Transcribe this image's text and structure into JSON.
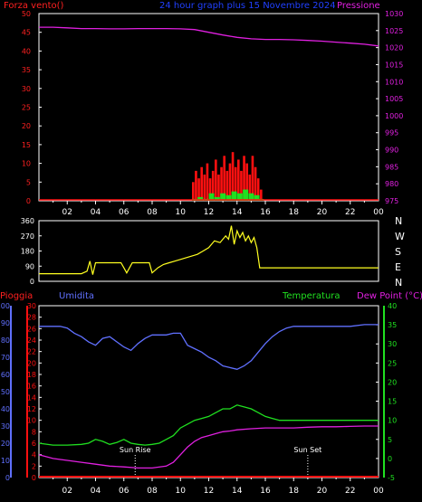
{
  "header": {
    "left_label": "Forza vento()",
    "title": "24 hour graph plus 15 Novembre 2024",
    "right_label": "Pressione"
  },
  "colors": {
    "background": "#000000",
    "frame": "#ffffff",
    "wind_axis": "#ff2020",
    "pressure": "#e020e0",
    "gust": "#ff1010",
    "wind_avg": "#20e020",
    "direction": "#ffff20",
    "humidity": "#6070ff",
    "temperature": "#20e020",
    "dew_point": "#e020e0",
    "rain": "#ff1010"
  },
  "hour_ticks": [
    "02",
    "04",
    "06",
    "08",
    "10",
    "12",
    "14",
    "16",
    "18",
    "20",
    "22",
    "00"
  ],
  "direction_letters": [
    "N",
    "W",
    "S",
    "E",
    "N"
  ],
  "bottom_labels": {
    "rain": "Pioggia",
    "humidity": "Umidita",
    "temperature": "Temperatura",
    "dew_point": "Dew Point (°C)",
    "sun_rise": "Sun Rise",
    "sun_set": "Sun Set"
  },
  "chart_data": [
    {
      "type": "line",
      "name_panel": "wind-pressure",
      "x_range_hours": [
        0,
        24
      ],
      "left_axis": {
        "ticks": [
          0,
          5,
          10,
          15,
          20,
          25,
          30,
          35,
          40,
          45,
          50
        ],
        "range": [
          0,
          50
        ]
      },
      "right_axis": {
        "ticks": [
          975,
          980,
          985,
          990,
          995,
          1000,
          1005,
          1010,
          1015,
          1020,
          1025,
          1030
        ],
        "range": [
          975,
          1030
        ]
      },
      "series": [
        {
          "key": "pressure",
          "axis": "right",
          "x": [
            0,
            1,
            2,
            3,
            4,
            5,
            6,
            7,
            8,
            9,
            10,
            11,
            12,
            13,
            14,
            15,
            16,
            17,
            18,
            19,
            20,
            21,
            22,
            23,
            24
          ],
          "values": [
            1026,
            1026,
            1025.8,
            1025.6,
            1025.6,
            1025.5,
            1025.5,
            1025.6,
            1025.6,
            1025.6,
            1025.5,
            1025.3,
            1024.5,
            1023.7,
            1023,
            1022.6,
            1022.4,
            1022.4,
            1022.3,
            1022.1,
            1021.9,
            1021.6,
            1021.3,
            1021,
            1020.5
          ]
        },
        {
          "key": "gust",
          "axis": "left",
          "x": [
            10.9,
            11.1,
            11.3,
            11.5,
            11.7,
            11.9,
            12.1,
            12.3,
            12.5,
            12.7,
            12.9,
            13.1,
            13.3,
            13.5,
            13.7,
            13.9,
            14.1,
            14.3,
            14.5,
            14.7,
            14.9,
            15.1,
            15.3,
            15.5,
            15.7
          ],
          "values": [
            5,
            8,
            6,
            9,
            7,
            10,
            6,
            8,
            11,
            7,
            9,
            12,
            8,
            10,
            13,
            9,
            11,
            8,
            12,
            10,
            7,
            12,
            9,
            6,
            3
          ]
        },
        {
          "key": "wind_avg",
          "axis": "left",
          "x": [
            11.0,
            11.4,
            11.8,
            12.2,
            12.6,
            13.0,
            13.4,
            13.8,
            14.2,
            14.6,
            15.0,
            15.4,
            15.7
          ],
          "values": [
            0.5,
            1,
            0.5,
            2,
            1,
            2,
            1.5,
            2.5,
            2,
            3,
            2,
            1.5,
            0.5
          ]
        }
      ]
    },
    {
      "type": "line",
      "name_panel": "wind-direction",
      "x_range_hours": [
        0,
        24
      ],
      "left_axis": {
        "ticks": [
          0,
          90,
          180,
          270,
          360
        ],
        "range": [
          0,
          360
        ]
      },
      "series": [
        {
          "key": "direction",
          "x": [
            0,
            1,
            2,
            3,
            3.4,
            3.6,
            3.8,
            4.0,
            4.2,
            4.6,
            5,
            5.4,
            5.8,
            6.0,
            6.2,
            6.6,
            7,
            7.4,
            7.8,
            8,
            8.4,
            8.8,
            9.2,
            9.6,
            10,
            10.4,
            10.8,
            11.2,
            11.6,
            12,
            12.4,
            12.8,
            13.2,
            13.4,
            13.6,
            13.8,
            14.0,
            14.2,
            14.4,
            14.6,
            14.8,
            15.0,
            15.2,
            15.4,
            15.6,
            16,
            17,
            18,
            19,
            20,
            21,
            22,
            23,
            24
          ],
          "values": [
            45,
            45,
            45,
            45,
            60,
            120,
            40,
            110,
            110,
            110,
            110,
            110,
            110,
            80,
            50,
            110,
            110,
            110,
            110,
            50,
            80,
            100,
            110,
            120,
            130,
            140,
            150,
            160,
            180,
            200,
            240,
            230,
            270,
            250,
            330,
            220,
            300,
            260,
            290,
            240,
            270,
            230,
            260,
            200,
            80,
            80,
            80,
            80,
            80,
            80,
            80,
            80,
            80,
            80
          ]
        }
      ]
    },
    {
      "type": "line",
      "name_panel": "humidity-temperature",
      "x_range_hours": [
        0,
        24
      ],
      "rain_axis": {
        "ticks": [
          0,
          2,
          4,
          6,
          8,
          10,
          12,
          14,
          16,
          18,
          20,
          22,
          24,
          26,
          28,
          30
        ],
        "range": [
          0,
          30
        ]
      },
      "humidity_axis": {
        "ticks": [
          0,
          10,
          20,
          30,
          40,
          50,
          60,
          70,
          80,
          90,
          100
        ],
        "range": [
          0,
          100
        ]
      },
      "temperature_axis": {
        "ticks": [
          -5,
          0,
          5,
          10,
          15,
          20,
          25,
          30,
          35,
          40
        ],
        "range": [
          -5,
          40
        ]
      },
      "markers": {
        "sun_rise_hour": 6.8,
        "sun_set_hour": 19.0
      },
      "series": [
        {
          "key": "humidity",
          "axis": "humidity",
          "x": [
            0,
            0.5,
            1,
            1.5,
            2,
            2.5,
            3,
            3.5,
            4,
            4.5,
            5,
            5.5,
            6,
            6.5,
            7,
            7.5,
            8,
            8.5,
            9,
            9.5,
            10,
            10.5,
            11,
            11.5,
            12,
            12.5,
            13,
            13.5,
            14,
            14.5,
            15,
            15.5,
            16,
            16.5,
            17,
            17.5,
            18,
            18.5,
            19,
            19.5,
            20,
            21,
            22,
            23,
            24
          ],
          "values": [
            88,
            88,
            88,
            88,
            87,
            84,
            82,
            79,
            77,
            81,
            82,
            79,
            76,
            74,
            78,
            81,
            83,
            83,
            83,
            84,
            84,
            77,
            75,
            73,
            70,
            68,
            65,
            64,
            63,
            65,
            68,
            73,
            78,
            82,
            85,
            87,
            88,
            88,
            88,
            88,
            88,
            88,
            88,
            89,
            89
          ]
        },
        {
          "key": "temperature",
          "axis": "temperature",
          "x": [
            0,
            1,
            2,
            3,
            3.5,
            4,
            4.5,
            5,
            5.5,
            6,
            6.5,
            7,
            7.5,
            8,
            8.5,
            9,
            9.5,
            10,
            10.5,
            11,
            11.5,
            12,
            12.5,
            13,
            13.5,
            14,
            14.5,
            15,
            15.5,
            16,
            16.5,
            17,
            18,
            19,
            20,
            21,
            22,
            23,
            24
          ],
          "values": [
            4,
            3.5,
            3.5,
            3.7,
            4,
            5,
            4.5,
            3.7,
            4.2,
            5,
            4,
            3.7,
            3.5,
            3.7,
            4,
            5,
            6,
            8,
            9,
            10,
            10.5,
            11,
            12,
            13,
            13,
            14,
            13.5,
            13,
            12,
            11,
            10.5,
            10,
            10,
            10,
            10,
            10,
            10,
            10,
            10
          ]
        },
        {
          "key": "dew_point",
          "axis": "temperature",
          "x": [
            0,
            1,
            2,
            3,
            4,
            5,
            6,
            7,
            8,
            9,
            9.5,
            10,
            10.5,
            11,
            11.5,
            12,
            12.5,
            13,
            13.5,
            14,
            15,
            16,
            17,
            18,
            19,
            20,
            21,
            22,
            23,
            24
          ],
          "values": [
            1,
            0,
            -0.5,
            -1,
            -1.5,
            -2,
            -2.2,
            -2.5,
            -2.5,
            -2,
            -1,
            1,
            3,
            4.5,
            5.5,
            6,
            6.5,
            7,
            7.2,
            7.5,
            7.8,
            8,
            8,
            8,
            8.2,
            8.3,
            8.3,
            8.4,
            8.5,
            8.5
          ]
        },
        {
          "key": "rain",
          "axis": "rain",
          "x": [
            0,
            24
          ],
          "values": [
            0,
            0
          ]
        }
      ]
    }
  ]
}
